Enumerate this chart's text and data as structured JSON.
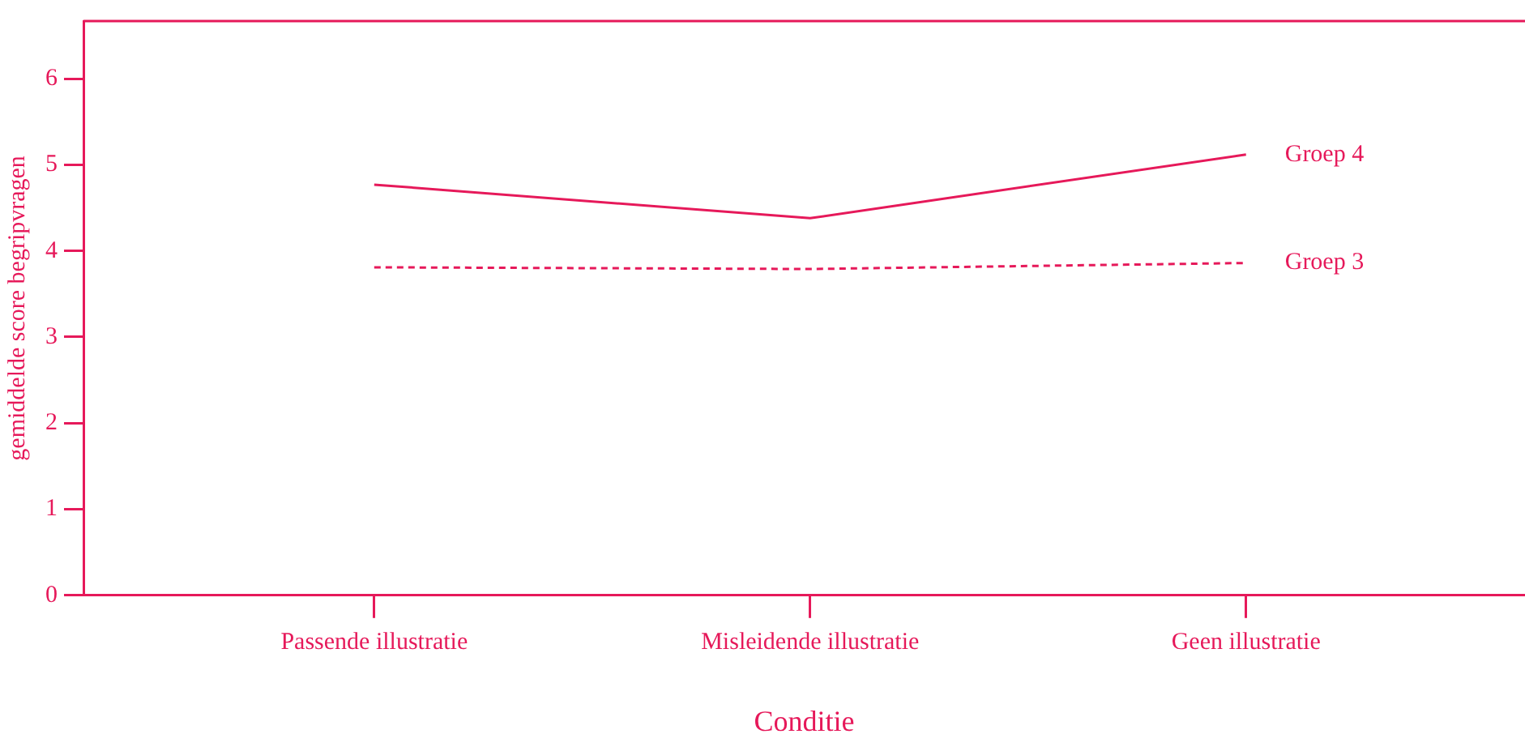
{
  "chart_data": {
    "type": "line",
    "xlabel": "Conditie",
    "ylabel": "gemiddelde score begripvragen",
    "categories": [
      "Passende illustratie",
      "Misleidende illustratie",
      "Geen illustratie"
    ],
    "series": [
      {
        "name": "Groep 4",
        "color": "#e6195a",
        "values": [
          4.77,
          4.38,
          5.12
        ],
        "line_style": "solid"
      },
      {
        "name": "Groep 3",
        "color": "#e6195a",
        "values": [
          3.81,
          3.79,
          3.86
        ],
        "line_style": "dashed"
      }
    ],
    "ylim": [
      0,
      6.67
    ],
    "yticks": [
      0,
      1,
      2,
      3,
      4,
      5,
      6
    ],
    "grid": false,
    "legend": false,
    "marker": "none"
  }
}
